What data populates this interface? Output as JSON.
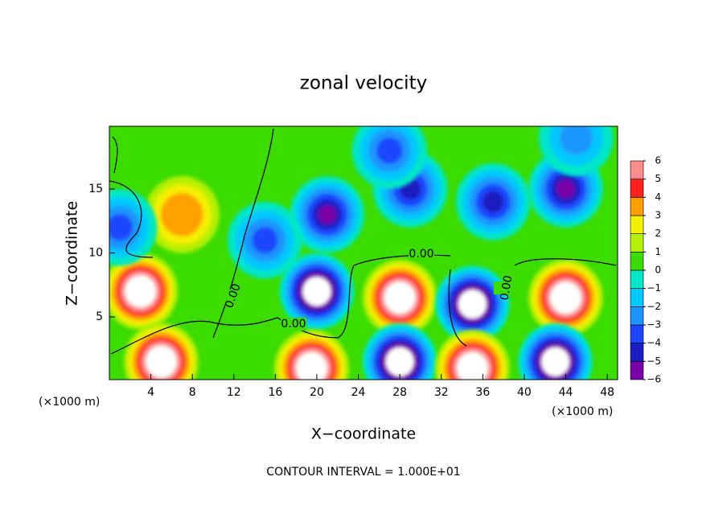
{
  "chart_data": {
    "type": "contour",
    "title": "zonal velocity",
    "x_label": "X−coordinate",
    "y_label": "Z−coordinate",
    "x_unit_left": "(×1000 m)",
    "x_unit_right": "(×1000 m)",
    "footnote": "CONTOUR INTERVAL = 1.000E+01",
    "xlim": [
      0,
      49
    ],
    "xticks": [
      4,
      8,
      12,
      16,
      20,
      24,
      28,
      32,
      36,
      40,
      44,
      48
    ],
    "ylim": [
      0.1,
      19.9
    ],
    "yticks": [
      5,
      10,
      15
    ],
    "background_value": 0.5,
    "levels": [
      -6,
      -5,
      -4,
      -3,
      -2,
      -1,
      0,
      1,
      2,
      3,
      4,
      5,
      6
    ],
    "level_ticks": [
      {
        "value": -6,
        "label": "−6"
      },
      {
        "value": -5,
        "label": "−5"
      },
      {
        "value": -4,
        "label": "−4"
      },
      {
        "value": -3,
        "label": "−3"
      },
      {
        "value": -2,
        "label": "−2"
      },
      {
        "value": -1,
        "label": "−1"
      },
      0,
      1,
      2,
      3,
      4,
      5,
      6
    ],
    "level_colors": [
      "#7a00a8",
      "#1c1cc0",
      "#1e46ff",
      "#1e96ff",
      "#00c8ff",
      "#00e6c8",
      "#3cdc00",
      "#b4f000",
      "#f5f000",
      "#ffa000",
      "#ff2020",
      "#ff8c8c"
    ],
    "contour_labels": [
      "0.00",
      "0.00",
      "0.00",
      "0.00"
    ],
    "features": [
      {
        "x": 7,
        "z": 13,
        "value": 3.5
      },
      {
        "x": 3,
        "z": 7,
        "value": 8
      },
      {
        "x": 20,
        "z": 7,
        "value": -8
      },
      {
        "x": 28,
        "z": 6.5,
        "value": 8
      },
      {
        "x": 35,
        "z": 6,
        "value": -8
      },
      {
        "x": 44,
        "z": 6.5,
        "value": 8
      },
      {
        "x": 5,
        "z": 1.5,
        "value": 8
      },
      {
        "x": 19.5,
        "z": 1,
        "value": 8
      },
      {
        "x": 28,
        "z": 1.5,
        "value": -8
      },
      {
        "x": 35,
        "z": 1,
        "value": 8
      },
      {
        "x": 43,
        "z": 1.5,
        "value": -8
      },
      {
        "x": 21,
        "z": 13,
        "value": -5
      },
      {
        "x": 29,
        "z": 15,
        "value": -4
      },
      {
        "x": 37,
        "z": 14,
        "value": -4
      },
      {
        "x": 44,
        "z": 15,
        "value": -5
      },
      {
        "x": 15,
        "z": 11,
        "value": -3
      },
      {
        "x": 27,
        "z": 18,
        "value": -3
      },
      {
        "x": 45,
        "z": 19,
        "value": -2
      },
      {
        "x": 1,
        "z": 12,
        "value": -3
      }
    ]
  }
}
